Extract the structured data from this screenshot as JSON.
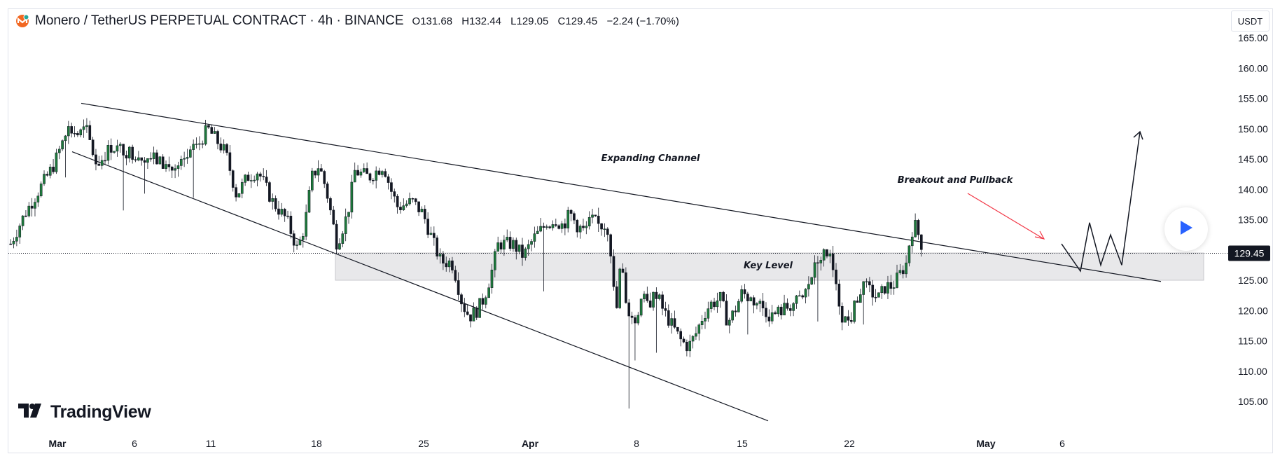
{
  "header": {
    "symbol": "Monero / TetherUS PERPETUAL CONTRACT · 4h · BINANCE",
    "open": "O131.68",
    "high": "H132.44",
    "low": "L129.05",
    "close": "C129.45",
    "change": "−2.24 (−1.70%)"
  },
  "currency": "USDT",
  "brand": "TradingView",
  "last_price_label": "129.45",
  "colors": {
    "up": "#26a69a",
    "down": "#131722",
    "candle_up_fill": "#1e7a3c",
    "zone": "#e8e8ea",
    "arrow_red": "#f23645",
    "play_blue": "#2962ff"
  },
  "chart_data": {
    "type": "candlestick",
    "y_axis": {
      "min": 103,
      "max": 166,
      "ticks": [
        "165.00",
        "160.00",
        "155.00",
        "150.00",
        "145.00",
        "140.00",
        "135.00",
        "130.00",
        "125.00",
        "120.00",
        "115.00",
        "110.00",
        "105.00"
      ]
    },
    "x_axis": {
      "labels": [
        "Mar",
        "6",
        "11",
        "18",
        "25",
        "Apr",
        "8",
        "15",
        "22",
        "May",
        "6"
      ]
    },
    "last_price": 129.45,
    "price_path": [
      [
        0,
        131
      ],
      [
        20,
        136
      ],
      [
        45,
        141
      ],
      [
        60,
        144
      ],
      [
        80,
        150
      ],
      [
        95,
        149
      ],
      [
        105,
        150
      ],
      [
        120,
        144
      ],
      [
        140,
        147
      ],
      [
        170,
        146
      ],
      [
        200,
        145
      ],
      [
        230,
        143
      ],
      [
        260,
        147
      ],
      [
        275,
        150
      ],
      [
        300,
        146
      ],
      [
        315,
        139
      ],
      [
        330,
        142
      ],
      [
        345,
        143
      ],
      [
        365,
        138
      ],
      [
        385,
        135
      ],
      [
        400,
        130
      ],
      [
        410,
        134
      ],
      [
        420,
        142
      ],
      [
        430,
        144
      ],
      [
        440,
        140
      ],
      [
        455,
        131
      ],
      [
        470,
        136
      ],
      [
        480,
        143
      ],
      [
        500,
        142
      ],
      [
        520,
        144
      ],
      [
        530,
        140
      ],
      [
        540,
        137
      ],
      [
        560,
        138
      ],
      [
        575,
        136
      ],
      [
        590,
        131
      ],
      [
        600,
        128
      ],
      [
        615,
        128
      ],
      [
        620,
        126
      ],
      [
        630,
        121
      ],
      [
        640,
        119
      ],
      [
        650,
        120
      ],
      [
        660,
        122
      ],
      [
        670,
        126
      ],
      [
        680,
        131
      ],
      [
        700,
        131
      ],
      [
        715,
        129
      ],
      [
        730,
        132
      ],
      [
        745,
        134
      ],
      [
        760,
        135
      ],
      [
        770,
        134
      ],
      [
        780,
        136
      ],
      [
        790,
        134
      ],
      [
        800,
        133
      ],
      [
        810,
        135
      ],
      [
        820,
        134
      ],
      [
        830,
        134
      ],
      [
        835,
        133
      ],
      [
        840,
        124
      ],
      [
        845,
        120
      ],
      [
        850,
        127
      ],
      [
        855,
        125
      ],
      [
        860,
        120
      ],
      [
        870,
        118
      ],
      [
        880,
        122
      ],
      [
        890,
        121
      ],
      [
        900,
        123
      ],
      [
        910,
        120
      ],
      [
        920,
        118
      ],
      [
        935,
        115
      ],
      [
        945,
        114
      ],
      [
        955,
        116
      ],
      [
        965,
        119
      ],
      [
        975,
        121
      ],
      [
        990,
        122
      ],
      [
        1000,
        118
      ],
      [
        1010,
        120
      ],
      [
        1020,
        123
      ],
      [
        1030,
        122
      ],
      [
        1045,
        121
      ],
      [
        1060,
        119
      ],
      [
        1075,
        120
      ],
      [
        1090,
        121
      ],
      [
        1105,
        122
      ],
      [
        1115,
        125
      ],
      [
        1125,
        128
      ],
      [
        1135,
        130
      ],
      [
        1145,
        128
      ],
      [
        1150,
        124
      ],
      [
        1160,
        119
      ],
      [
        1170,
        118
      ],
      [
        1180,
        122
      ],
      [
        1190,
        124
      ],
      [
        1200,
        123
      ],
      [
        1210,
        122
      ],
      [
        1220,
        124
      ],
      [
        1230,
        124
      ],
      [
        1240,
        126
      ],
      [
        1250,
        128
      ],
      [
        1255,
        133
      ],
      [
        1262,
        134
      ],
      [
        1270,
        131
      ]
    ],
    "candle_x_range": [
      13,
      1318
    ],
    "price_path_index_range": [
      0,
      1270
    ],
    "projection": [
      [
        131,
        "start"
      ],
      [
        126.5,
        "a"
      ],
      [
        134.5,
        "b"
      ],
      [
        127.5,
        "c"
      ],
      [
        132.5,
        "d"
      ],
      [
        127.5,
        "e"
      ],
      [
        149.5,
        "target"
      ]
    ],
    "annotations": [
      {
        "text": "Expanding Channel"
      },
      {
        "text": "Breakout and Pullback"
      },
      {
        "text": "Key Level"
      }
    ],
    "key_level_zone": [
      125,
      129.5
    ],
    "lines": [
      {
        "name": "upper-trendline",
        "from": [
          0.0,
          154.2
        ],
        "to": [
          1.0,
          124.8
        ]
      },
      {
        "name": "lower-trendline",
        "from": [
          0.0,
          146.2
        ],
        "to": [
          1.0,
          101.8
        ]
      }
    ]
  }
}
